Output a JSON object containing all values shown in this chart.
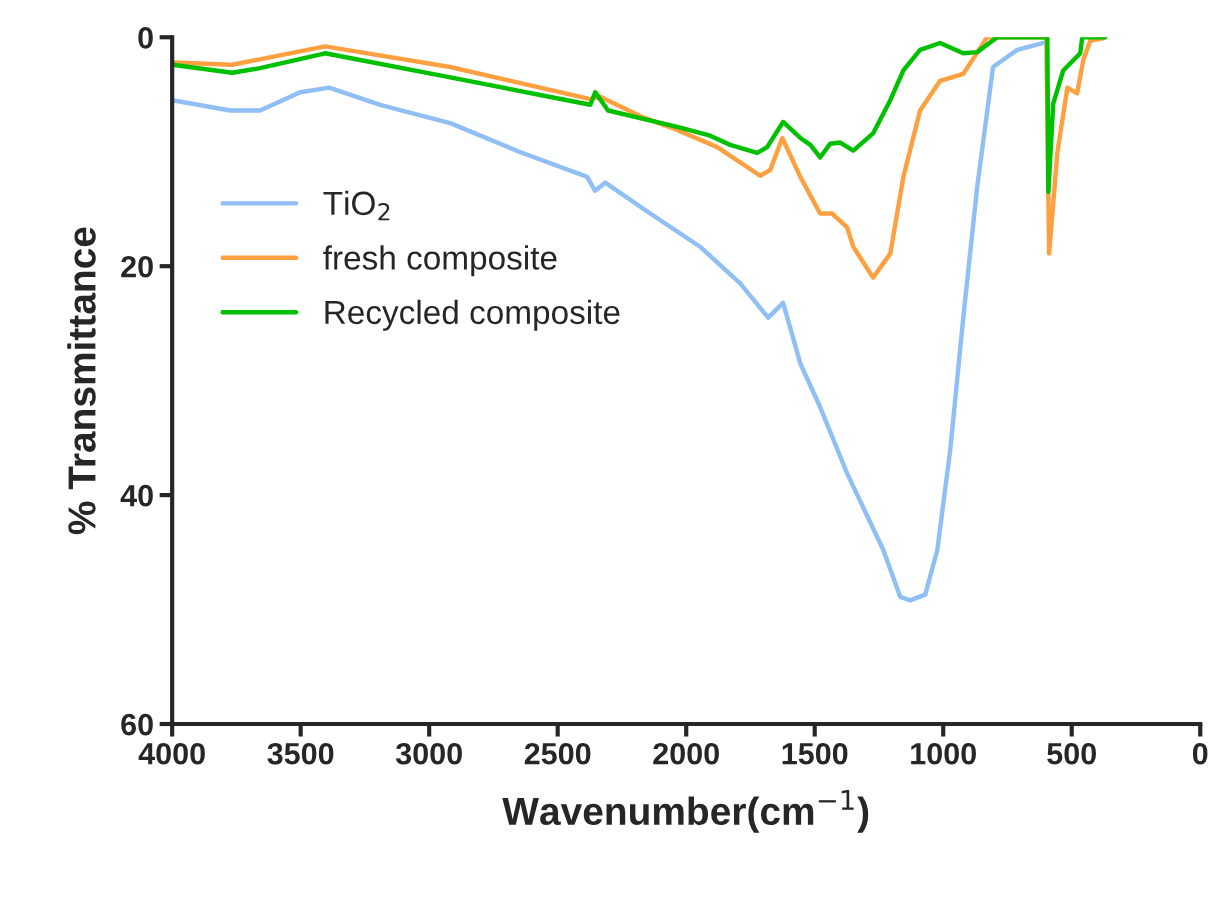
{
  "chart_data": {
    "type": "line",
    "xlabel": "Wavenumber(cm$^{−1}$)",
    "ylabel": "% Transmittance",
    "xlim": [
      4000,
      0
    ],
    "xticks": [
      4000,
      3500,
      3000,
      2500,
      2000,
      1500,
      1000,
      500,
      0
    ],
    "ylim": [
      60,
      0
    ],
    "yticks": [
      0,
      20,
      40,
      60
    ],
    "grid": false,
    "legend": "top left",
    "marker": "none",
    "line_style": "solid",
    "series": [
      {
        "name": "TiO$_{2}$",
        "color": "#8fbff5",
        "x": [
          4000,
          3774,
          3658,
          3502,
          3389,
          3191,
          2918,
          2650,
          2385,
          2355,
          2315,
          2140,
          1946,
          1790,
          1681,
          1623,
          1556,
          1479,
          1374,
          1233,
          1167,
          1129,
          1070,
          1023,
          973,
          922,
          868,
          806,
          712,
          595
        ],
        "values": [
          5.5,
          6.4,
          6.4,
          4.8,
          4.4,
          5.9,
          7.5,
          10.0,
          12.2,
          13.4,
          12.7,
          15.4,
          18.3,
          21.5,
          24.5,
          23.2,
          28.5,
          32.3,
          38.1,
          44.8,
          48.9,
          49.2,
          48.7,
          44.8,
          36.1,
          24.5,
          13.1,
          2.6,
          1.1,
          0.4
        ]
      },
      {
        "name": "fresh composite",
        "color": "#ffa040",
        "x": [
          4000,
          3766,
          3405,
          2918,
          2373,
          2335,
          2167,
          2035,
          1879,
          1712,
          1673,
          1626,
          1556,
          1479,
          1432,
          1374,
          1350,
          1273,
          1206,
          1155,
          1090,
          1012,
          922,
          829,
          599,
          588,
          556,
          517,
          479,
          455,
          428,
          377
        ],
        "values": [
          2.2,
          2.4,
          0.8,
          2.6,
          5.4,
          5.2,
          7.0,
          8.1,
          9.6,
          12.1,
          11.6,
          8.8,
          12.2,
          15.4,
          15.4,
          16.6,
          18.3,
          21.0,
          18.9,
          12.2,
          6.4,
          3.8,
          3.2,
          0,
          0,
          18.9,
          10.1,
          4.4,
          4.9,
          2.0,
          0.3,
          0.1
        ]
      },
      {
        "name": "Recycled composite",
        "color": "#00c000",
        "x": [
          4000,
          3766,
          3658,
          3405,
          2918,
          2373,
          2354,
          2304,
          2023,
          1907,
          1829,
          1724,
          1685,
          1623,
          1556,
          1517,
          1479,
          1440,
          1401,
          1350,
          1273,
          1206,
          1155,
          1090,
          1012,
          922,
          868,
          790,
          595,
          591,
          572,
          533,
          467,
          459,
          370
        ],
        "values": [
          2.4,
          3.1,
          2.7,
          1.4,
          3.5,
          5.9,
          4.8,
          6.4,
          7.9,
          8.6,
          9.4,
          10.1,
          9.6,
          7.4,
          8.8,
          9.4,
          10.5,
          9.3,
          9.2,
          9.9,
          8.4,
          5.5,
          2.9,
          1.1,
          0.5,
          1.4,
          1.3,
          0,
          0,
          13.5,
          5.8,
          2.9,
          1.4,
          0,
          0
        ]
      }
    ]
  }
}
